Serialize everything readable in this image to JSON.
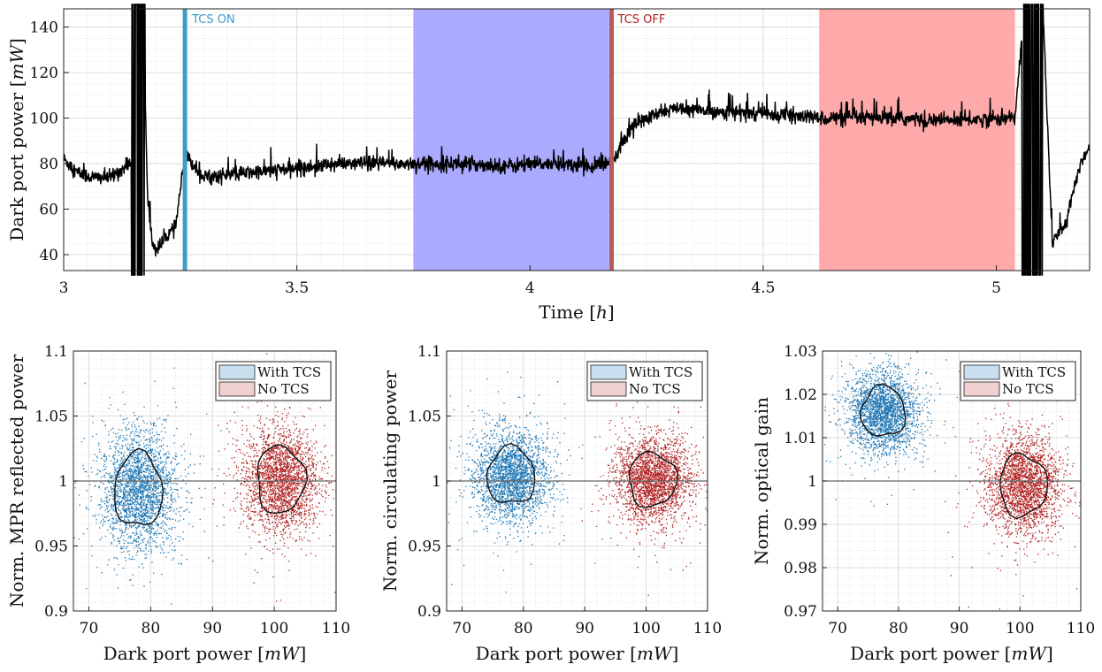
{
  "colors": {
    "blue_points": "#1f77b4",
    "red_points": "#b22222",
    "tcs_on_line": "#3a9ec9",
    "tcs_off_line": "#b85a5a",
    "blue_region": "#aaaaff",
    "red_region": "#ffaaaa",
    "legend_blue": "#c9dff0",
    "legend_red": "#efcfcf"
  },
  "chart_data": [
    {
      "type": "line",
      "xlabel": "Time [h]",
      "ylabel": "Dark port power [mW]",
      "xlim": [
        3,
        5.2
      ],
      "ylim": [
        33,
        148
      ],
      "xticks": [
        "3",
        "3.5",
        "4",
        "4.5",
        "5"
      ],
      "xtick_values": [
        3,
        3.5,
        4,
        4.5,
        5
      ],
      "yticks": [
        "40",
        "60",
        "80",
        "100",
        "120",
        "140"
      ],
      "ytick_values": [
        40,
        60,
        80,
        100,
        120,
        140
      ],
      "grid": true,
      "series": [
        {
          "name": "Dark port power",
          "x": [
            3.0,
            3.03,
            3.06,
            3.1,
            3.13,
            3.145,
            3.15,
            3.16,
            3.17,
            3.18,
            3.19,
            3.2,
            3.22,
            3.24,
            3.26,
            3.3,
            3.4,
            3.5,
            3.6,
            3.7,
            3.75,
            3.85,
            3.95,
            4.05,
            4.15,
            4.18,
            4.22,
            4.3,
            4.4,
            4.5,
            4.62,
            4.75,
            4.9,
            5.04,
            5.06,
            5.08,
            5.1,
            5.12,
            5.15,
            5.18,
            5.2
          ],
          "values": [
            82,
            76,
            74,
            74,
            78,
            80,
            148,
            33,
            148,
            65,
            45,
            42,
            48,
            52,
            84,
            74,
            76,
            78,
            80,
            80,
            80,
            80,
            79,
            80,
            79,
            82,
            97,
            104,
            103,
            102,
            100,
            100,
            99,
            100,
            148,
            33,
            148,
            45,
            55,
            80,
            88
          ]
        }
      ],
      "annotations": [
        {
          "label": "TCS ON",
          "x": 3.26
        },
        {
          "label": "TCS OFF",
          "x": 4.175
        }
      ],
      "shaded_regions": [
        {
          "name": "With TCS interval",
          "x_start": 3.75,
          "x_end": 4.17
        },
        {
          "name": "No TCS interval",
          "x_start": 4.62,
          "x_end": 5.04
        }
      ]
    },
    {
      "type": "scatter",
      "xlabel": "Dark port power [mW]",
      "ylabel": "Norm. MPR reflected power",
      "xlim": [
        67.5,
        110
      ],
      "ylim": [
        0.9,
        1.1
      ],
      "xticks": [
        "70",
        "80",
        "90",
        "100",
        "110"
      ],
      "xtick_values": [
        70,
        80,
        90,
        100,
        110
      ],
      "yticks": [
        "0.9",
        "0.95",
        "1",
        "1.05",
        "1.1"
      ],
      "ytick_values": [
        0.9,
        0.95,
        1.0,
        1.05,
        1.1
      ],
      "reference_line": 1.0,
      "legend": {
        "position": "top-right",
        "entries": [
          "With TCS",
          "No TCS"
        ]
      },
      "series": [
        {
          "name": "With TCS",
          "center": [
            78,
            0.993
          ],
          "spread": [
            3.0,
            0.022
          ]
        },
        {
          "name": "No TCS",
          "center": [
            101,
            1.001
          ],
          "spread": [
            3.0,
            0.02
          ]
        }
      ]
    },
    {
      "type": "scatter",
      "xlabel": "Dark port power [mW]",
      "ylabel": "Norm. circulating power",
      "xlim": [
        67.5,
        110
      ],
      "ylim": [
        0.9,
        1.1
      ],
      "xticks": [
        "70",
        "80",
        "90",
        "100",
        "110"
      ],
      "xtick_values": [
        70,
        80,
        90,
        100,
        110
      ],
      "yticks": [
        "0.9",
        "0.95",
        "1",
        "1.05",
        "1.1"
      ],
      "ytick_values": [
        0.9,
        0.95,
        1.0,
        1.05,
        1.1
      ],
      "reference_line": 1.0,
      "legend": {
        "position": "top-right",
        "entries": [
          "With TCS",
          "No TCS"
        ]
      },
      "series": [
        {
          "name": "With TCS",
          "center": [
            78,
            1.004
          ],
          "spread": [
            3.0,
            0.017
          ]
        },
        {
          "name": "No TCS",
          "center": [
            101,
            1.001
          ],
          "spread": [
            3.0,
            0.016
          ]
        }
      ]
    },
    {
      "type": "scatter",
      "xlabel": "Dark port power [mW]",
      "ylabel": "Norm. optical gain",
      "xlim": [
        67.5,
        110
      ],
      "ylim": [
        0.97,
        1.03
      ],
      "xticks": [
        "70",
        "80",
        "90",
        "100",
        "110"
      ],
      "xtick_values": [
        70,
        80,
        90,
        100,
        110
      ],
      "yticks": [
        "0.97",
        "0.98",
        "0.99",
        "1",
        "1.01",
        "1.02",
        "1.03"
      ],
      "ytick_values": [
        0.97,
        0.98,
        0.99,
        1.0,
        1.01,
        1.02,
        1.03
      ],
      "reference_line": 1.0,
      "legend": {
        "position": "top-right",
        "entries": [
          "With TCS",
          "No TCS"
        ]
      },
      "series": [
        {
          "name": "With TCS",
          "center": [
            77.5,
            1.016
          ],
          "spread": [
            2.8,
            0.0045
          ]
        },
        {
          "name": "No TCS",
          "center": [
            100.5,
            0.999
          ],
          "spread": [
            3.0,
            0.0055
          ]
        }
      ]
    }
  ]
}
